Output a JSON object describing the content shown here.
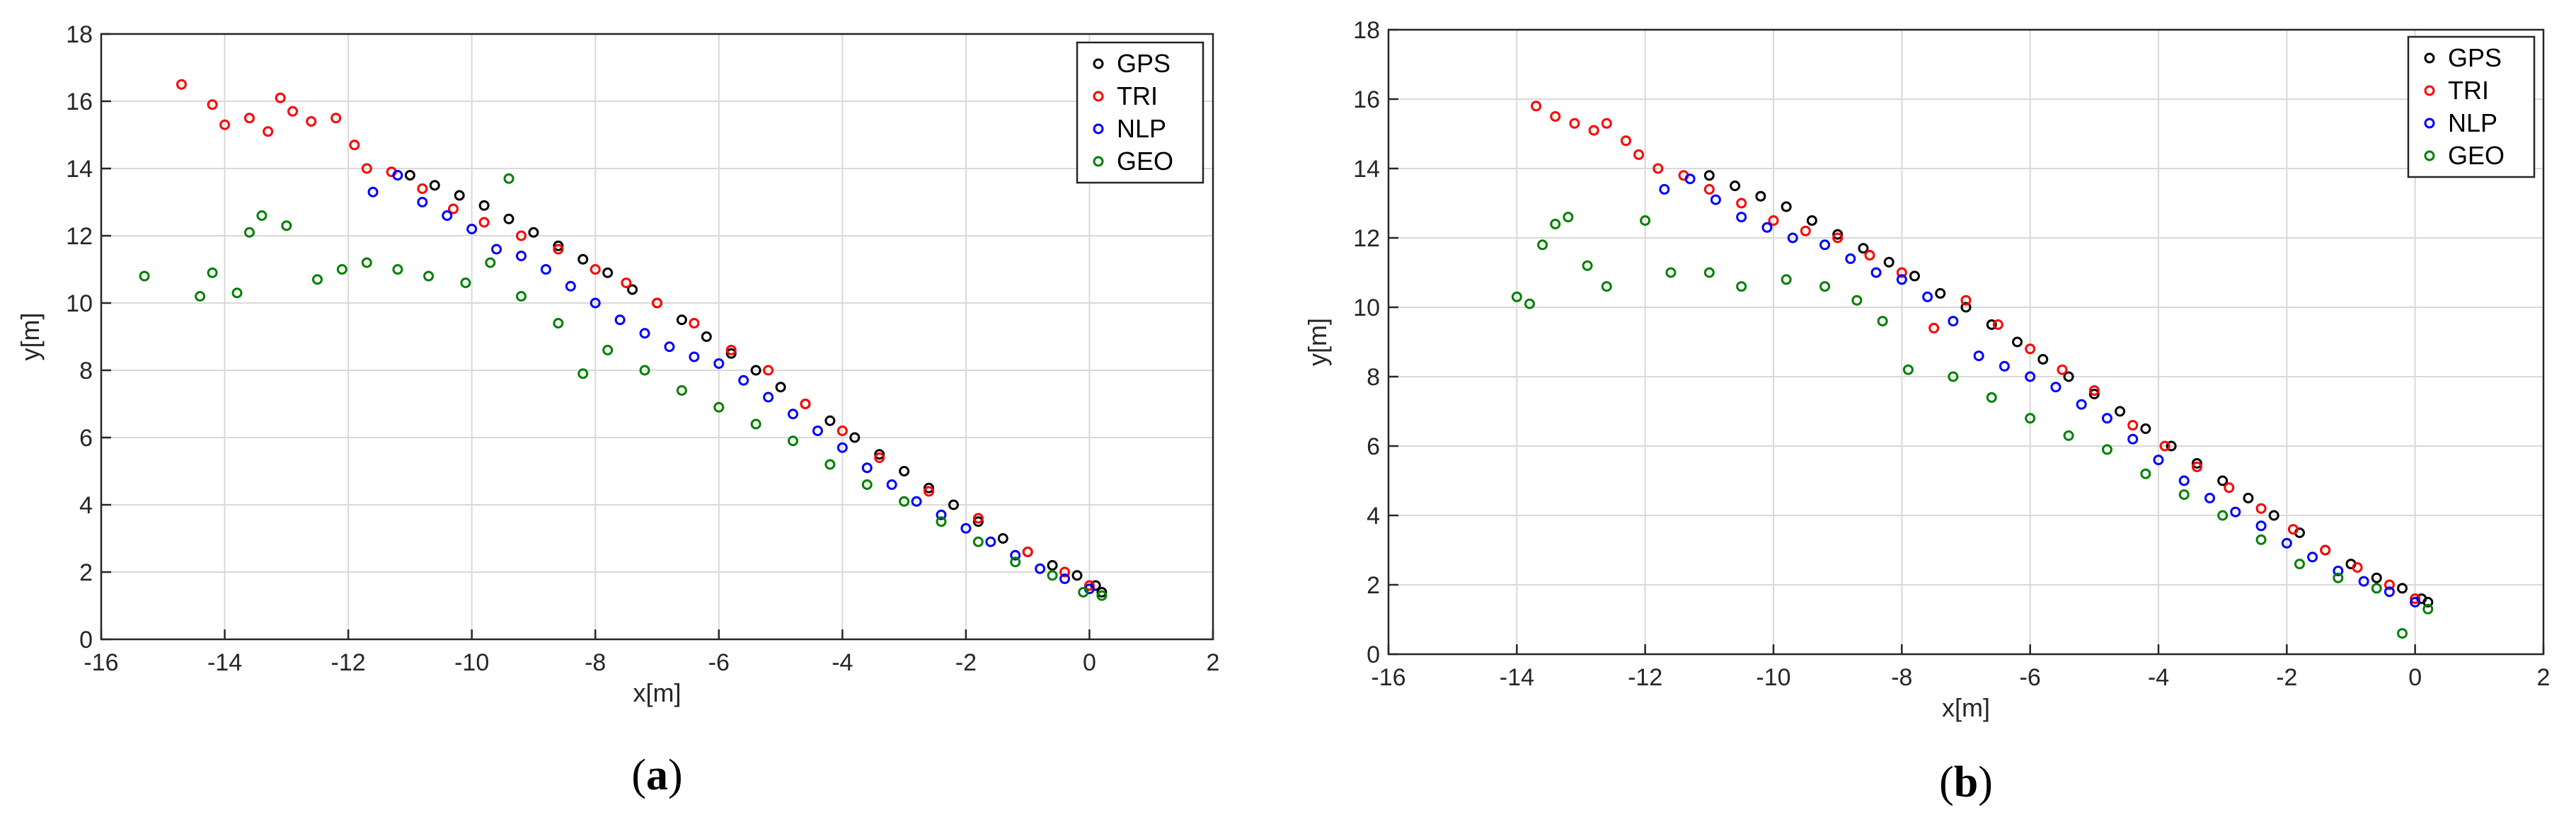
{
  "colors": {
    "GPS": "#000000",
    "TRI": "#ff0000",
    "NLP": "#0000ff",
    "GEO": "#008000",
    "grid": "#d9d9d9",
    "axis": "#262626"
  },
  "chart_data": [
    {
      "type": "scatter",
      "caption": {
        "open": "(",
        "letter": "a",
        "close": ")"
      },
      "xlabel": "x[m]",
      "ylabel": "y[m]",
      "xlim": [
        -16,
        2
      ],
      "ylim": [
        0,
        18
      ],
      "xticks": [
        -16,
        -14,
        -12,
        -10,
        -8,
        -6,
        -4,
        -2,
        0,
        2
      ],
      "yticks": [
        0,
        2,
        4,
        6,
        8,
        10,
        12,
        14,
        16,
        18
      ],
      "grid": true,
      "legend": "top-right",
      "series": [
        {
          "name": "GPS",
          "points": [
            [
              -11.0,
              13.8
            ],
            [
              -10.6,
              13.5
            ],
            [
              -10.2,
              13.2
            ],
            [
              -9.8,
              12.9
            ],
            [
              -9.4,
              12.5
            ],
            [
              -9.0,
              12.1
            ],
            [
              -8.6,
              11.7
            ],
            [
              -8.2,
              11.3
            ],
            [
              -7.8,
              10.9
            ],
            [
              -7.4,
              10.4
            ],
            [
              -7.0,
              10.0
            ],
            [
              -6.6,
              9.5
            ],
            [
              -6.2,
              9.0
            ],
            [
              -5.8,
              8.5
            ],
            [
              -5.4,
              8.0
            ],
            [
              -5.0,
              7.5
            ],
            [
              -4.6,
              7.0
            ],
            [
              -4.2,
              6.5
            ],
            [
              -3.8,
              6.0
            ],
            [
              -3.4,
              5.5
            ],
            [
              -3.0,
              5.0
            ],
            [
              -2.6,
              4.5
            ],
            [
              -2.2,
              4.0
            ],
            [
              -1.8,
              3.5
            ],
            [
              -1.4,
              3.0
            ],
            [
              -1.0,
              2.6
            ],
            [
              -0.6,
              2.2
            ],
            [
              -0.2,
              1.9
            ],
            [
              0.1,
              1.6
            ],
            [
              0.2,
              1.4
            ]
          ]
        },
        {
          "name": "TRI",
          "points": [
            [
              -14.7,
              16.5
            ],
            [
              -14.2,
              15.9
            ],
            [
              -14.0,
              15.3
            ],
            [
              -13.6,
              15.5
            ],
            [
              -13.3,
              15.1
            ],
            [
              -13.1,
              16.1
            ],
            [
              -12.9,
              15.7
            ],
            [
              -12.6,
              15.4
            ],
            [
              -12.2,
              15.5
            ],
            [
              -11.9,
              14.7
            ],
            [
              -11.7,
              14.0
            ],
            [
              -11.3,
              13.9
            ],
            [
              -10.8,
              13.4
            ],
            [
              -10.3,
              12.8
            ],
            [
              -9.8,
              12.4
            ],
            [
              -9.2,
              12.0
            ],
            [
              -8.6,
              11.6
            ],
            [
              -8.0,
              11.0
            ],
            [
              -7.5,
              10.6
            ],
            [
              -7.0,
              10.0
            ],
            [
              -6.4,
              9.4
            ],
            [
              -5.8,
              8.6
            ],
            [
              -5.2,
              8.0
            ],
            [
              -4.6,
              7.0
            ],
            [
              -4.0,
              6.2
            ],
            [
              -3.4,
              5.4
            ],
            [
              -2.6,
              4.4
            ],
            [
              -1.8,
              3.6
            ],
            [
              -1.0,
              2.6
            ],
            [
              -0.4,
              2.0
            ],
            [
              0.0,
              1.6
            ]
          ]
        },
        {
          "name": "NLP",
          "points": [
            [
              -11.6,
              13.3
            ],
            [
              -11.2,
              13.8
            ],
            [
              -10.8,
              13.0
            ],
            [
              -10.4,
              12.6
            ],
            [
              -10.0,
              12.2
            ],
            [
              -9.6,
              11.6
            ],
            [
              -9.2,
              11.4
            ],
            [
              -8.8,
              11.0
            ],
            [
              -8.4,
              10.5
            ],
            [
              -8.0,
              10.0
            ],
            [
              -7.6,
              9.5
            ],
            [
              -7.2,
              9.1
            ],
            [
              -6.8,
              8.7
            ],
            [
              -6.4,
              8.4
            ],
            [
              -6.0,
              8.2
            ],
            [
              -5.6,
              7.7
            ],
            [
              -5.2,
              7.2
            ],
            [
              -4.8,
              6.7
            ],
            [
              -4.4,
              6.2
            ],
            [
              -4.0,
              5.7
            ],
            [
              -3.6,
              5.1
            ],
            [
              -3.2,
              4.6
            ],
            [
              -2.8,
              4.1
            ],
            [
              -2.4,
              3.7
            ],
            [
              -2.0,
              3.3
            ],
            [
              -1.6,
              2.9
            ],
            [
              -1.2,
              2.5
            ],
            [
              -0.8,
              2.1
            ],
            [
              -0.4,
              1.8
            ],
            [
              0.0,
              1.5
            ]
          ]
        },
        {
          "name": "GEO",
          "points": [
            [
              -15.3,
              10.8
            ],
            [
              -14.4,
              10.2
            ],
            [
              -14.2,
              10.9
            ],
            [
              -13.8,
              10.3
            ],
            [
              -13.6,
              12.1
            ],
            [
              -13.4,
              12.6
            ],
            [
              -13.0,
              12.3
            ],
            [
              -12.5,
              10.7
            ],
            [
              -12.1,
              11.0
            ],
            [
              -11.7,
              11.2
            ],
            [
              -11.2,
              11.0
            ],
            [
              -10.7,
              10.8
            ],
            [
              -10.1,
              10.6
            ],
            [
              -9.7,
              11.2
            ],
            [
              -9.4,
              13.7
            ],
            [
              -9.2,
              10.2
            ],
            [
              -8.6,
              9.4
            ],
            [
              -8.2,
              7.9
            ],
            [
              -7.8,
              8.6
            ],
            [
              -7.2,
              8.0
            ],
            [
              -6.6,
              7.4
            ],
            [
              -6.0,
              6.9
            ],
            [
              -5.4,
              6.4
            ],
            [
              -4.8,
              5.9
            ],
            [
              -4.2,
              5.2
            ],
            [
              -3.6,
              4.6
            ],
            [
              -3.0,
              4.1
            ],
            [
              -2.4,
              3.5
            ],
            [
              -1.8,
              2.9
            ],
            [
              -1.2,
              2.3
            ],
            [
              -0.6,
              1.9
            ],
            [
              -0.1,
              1.4
            ],
            [
              0.2,
              1.3
            ]
          ]
        }
      ]
    },
    {
      "type": "scatter",
      "caption": {
        "open": "(",
        "letter": "b",
        "close": ")"
      },
      "xlabel": "x[m]",
      "ylabel": "y[m]",
      "xlim": [
        -16,
        2
      ],
      "ylim": [
        0,
        18
      ],
      "xticks": [
        -16,
        -14,
        -12,
        -10,
        -8,
        -6,
        -4,
        -2,
        0,
        2
      ],
      "yticks": [
        0,
        2,
        4,
        6,
        8,
        10,
        12,
        14,
        16,
        18
      ],
      "grid": true,
      "legend": "top-right",
      "series": [
        {
          "name": "GPS",
          "points": [
            [
              -11.0,
              13.8
            ],
            [
              -10.6,
              13.5
            ],
            [
              -10.2,
              13.2
            ],
            [
              -9.8,
              12.9
            ],
            [
              -9.4,
              12.5
            ],
            [
              -9.0,
              12.1
            ],
            [
              -8.6,
              11.7
            ],
            [
              -8.2,
              11.3
            ],
            [
              -7.8,
              10.9
            ],
            [
              -7.4,
              10.4
            ],
            [
              -7.0,
              10.0
            ],
            [
              -6.6,
              9.5
            ],
            [
              -6.2,
              9.0
            ],
            [
              -5.8,
              8.5
            ],
            [
              -5.4,
              8.0
            ],
            [
              -5.0,
              7.5
            ],
            [
              -4.6,
              7.0
            ],
            [
              -4.2,
              6.5
            ],
            [
              -3.8,
              6.0
            ],
            [
              -3.4,
              5.5
            ],
            [
              -3.0,
              5.0
            ],
            [
              -2.6,
              4.5
            ],
            [
              -2.2,
              4.0
            ],
            [
              -1.8,
              3.5
            ],
            [
              -1.4,
              3.0
            ],
            [
              -1.0,
              2.6
            ],
            [
              -0.6,
              2.2
            ],
            [
              -0.2,
              1.9
            ],
            [
              0.1,
              1.6
            ],
            [
              0.2,
              1.5
            ]
          ]
        },
        {
          "name": "TRI",
          "points": [
            [
              -13.7,
              15.8
            ],
            [
              -13.4,
              15.5
            ],
            [
              -13.1,
              15.3
            ],
            [
              -12.8,
              15.1
            ],
            [
              -12.6,
              15.3
            ],
            [
              -12.3,
              14.8
            ],
            [
              -12.1,
              14.4
            ],
            [
              -11.8,
              14.0
            ],
            [
              -11.4,
              13.8
            ],
            [
              -11.0,
              13.4
            ],
            [
              -10.5,
              13.0
            ],
            [
              -10.0,
              12.5
            ],
            [
              -9.5,
              12.2
            ],
            [
              -9.0,
              12.0
            ],
            [
              -8.5,
              11.5
            ],
            [
              -8.0,
              11.0
            ],
            [
              -7.5,
              9.4
            ],
            [
              -7.0,
              10.2
            ],
            [
              -6.5,
              9.5
            ],
            [
              -6.0,
              8.8
            ],
            [
              -5.5,
              8.2
            ],
            [
              -5.0,
              7.6
            ],
            [
              -4.4,
              6.6
            ],
            [
              -3.9,
              6.0
            ],
            [
              -3.4,
              5.4
            ],
            [
              -2.9,
              4.8
            ],
            [
              -2.4,
              4.2
            ],
            [
              -1.9,
              3.6
            ],
            [
              -1.4,
              3.0
            ],
            [
              -0.9,
              2.5
            ],
            [
              -0.4,
              2.0
            ],
            [
              0.0,
              1.6
            ]
          ]
        },
        {
          "name": "NLP",
          "points": [
            [
              -11.7,
              13.4
            ],
            [
              -11.3,
              13.7
            ],
            [
              -10.9,
              13.1
            ],
            [
              -10.5,
              12.6
            ],
            [
              -10.1,
              12.3
            ],
            [
              -9.7,
              12.0
            ],
            [
              -9.2,
              11.8
            ],
            [
              -8.8,
              11.4
            ],
            [
              -8.4,
              11.0
            ],
            [
              -8.0,
              10.8
            ],
            [
              -7.6,
              10.3
            ],
            [
              -7.2,
              9.6
            ],
            [
              -6.8,
              8.6
            ],
            [
              -6.4,
              8.3
            ],
            [
              -6.0,
              8.0
            ],
            [
              -5.6,
              7.7
            ],
            [
              -5.2,
              7.2
            ],
            [
              -4.8,
              6.8
            ],
            [
              -4.4,
              6.2
            ],
            [
              -4.0,
              5.6
            ],
            [
              -3.6,
              5.0
            ],
            [
              -3.2,
              4.5
            ],
            [
              -2.8,
              4.1
            ],
            [
              -2.4,
              3.7
            ],
            [
              -2.0,
              3.2
            ],
            [
              -1.6,
              2.8
            ],
            [
              -1.2,
              2.4
            ],
            [
              -0.8,
              2.1
            ],
            [
              -0.4,
              1.8
            ],
            [
              0.0,
              1.5
            ]
          ]
        },
        {
          "name": "GEO",
          "points": [
            [
              -14.0,
              10.3
            ],
            [
              -13.8,
              10.1
            ],
            [
              -13.6,
              11.8
            ],
            [
              -13.4,
              12.4
            ],
            [
              -13.2,
              12.6
            ],
            [
              -12.9,
              11.2
            ],
            [
              -12.6,
              10.6
            ],
            [
              -12.0,
              12.5
            ],
            [
              -11.6,
              11.0
            ],
            [
              -11.0,
              11.0
            ],
            [
              -10.5,
              10.6
            ],
            [
              -9.8,
              10.8
            ],
            [
              -9.2,
              10.6
            ],
            [
              -8.7,
              10.2
            ],
            [
              -8.3,
              9.6
            ],
            [
              -7.9,
              8.2
            ],
            [
              -7.2,
              8.0
            ],
            [
              -6.6,
              7.4
            ],
            [
              -6.0,
              6.8
            ],
            [
              -5.4,
              6.3
            ],
            [
              -4.8,
              5.9
            ],
            [
              -4.2,
              5.2
            ],
            [
              -3.6,
              4.6
            ],
            [
              -3.0,
              4.0
            ],
            [
              -2.4,
              3.3
            ],
            [
              -1.8,
              2.6
            ],
            [
              -1.2,
              2.2
            ],
            [
              -0.6,
              1.9
            ],
            [
              -0.2,
              0.6
            ],
            [
              0.2,
              1.3
            ]
          ]
        }
      ]
    }
  ]
}
